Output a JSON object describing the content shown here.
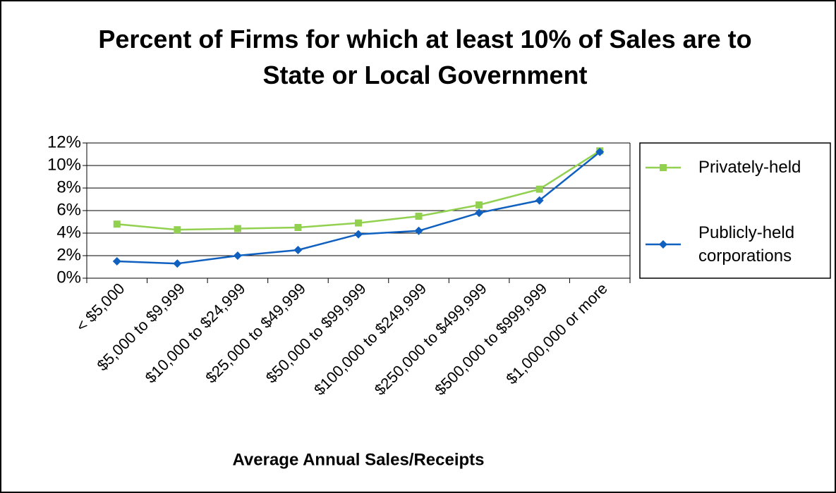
{
  "chart_data": {
    "type": "line",
    "title": "Percent of Firms for which at least 10% of Sales are to State or Local Government",
    "x_label": "Average Annual Sales/Receipts",
    "categories": [
      "< $5,000",
      "$5,000 to $9,999",
      "$10,000 to $24,999",
      "$25,000 to $49,999",
      "$50,000 to $99,999",
      "$100,000 to $249,999",
      "$250,000 to $499,999",
      "$500,000 to $999,999",
      "$1,000,000 or more"
    ],
    "series": [
      {
        "name": "Privately-held",
        "color": "#92d050",
        "marker": "square",
        "values": [
          4.8,
          4.3,
          4.4,
          4.5,
          4.9,
          5.5,
          6.5,
          7.9,
          11.3
        ]
      },
      {
        "name": "Publicly-held corporations",
        "color": "#1060c0",
        "marker": "diamond",
        "values": [
          1.5,
          1.3,
          2.0,
          2.5,
          3.9,
          4.2,
          5.8,
          6.9,
          11.2
        ]
      }
    ],
    "ylim": [
      0,
      12
    ],
    "yticks": [
      {
        "value": 0,
        "label": "0%"
      },
      {
        "value": 2,
        "label": "2%"
      },
      {
        "value": 4,
        "label": "4%"
      },
      {
        "value": 6,
        "label": "6%"
      },
      {
        "value": 8,
        "label": "8%"
      },
      {
        "value": 10,
        "label": "10%"
      },
      {
        "value": 12,
        "label": "12%"
      }
    ],
    "grid": true,
    "legend": "right"
  }
}
